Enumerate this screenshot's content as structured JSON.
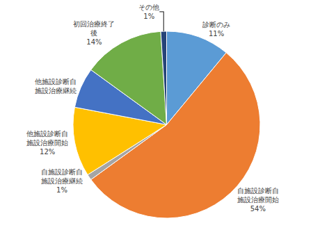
{
  "chart_data": {
    "type": "pie",
    "categories": [
      "診断のみ",
      "自施設診断自施設治療開始",
      "自施設診断自施設治療継続",
      "他施設診断自施設治療開始",
      "他施設診断自施設治療継続",
      "初回治療終了後",
      "その他"
    ],
    "values": [
      11,
      54,
      1,
      12,
      7,
      14,
      1
    ],
    "value_labels": [
      "11%",
      "54%",
      "1%",
      "12%",
      null,
      "14%",
      "1%"
    ],
    "colors": [
      "#5b9bd5",
      "#ed7d31",
      "#a5a5a5",
      "#ffc000",
      "#4472c4",
      "#70ad47",
      "#264478"
    ],
    "data_labels": true
  }
}
